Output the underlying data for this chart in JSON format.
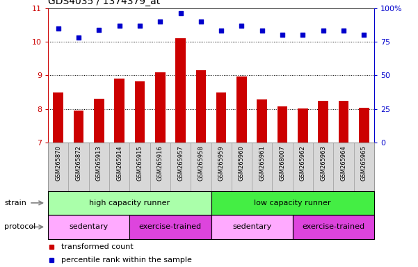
{
  "title": "GDS4035 / 1374379_at",
  "samples": [
    "GSM265870",
    "GSM265872",
    "GSM265913",
    "GSM265914",
    "GSM265915",
    "GSM265916",
    "GSM265957",
    "GSM265958",
    "GSM265959",
    "GSM265960",
    "GSM265961",
    "GSM268007",
    "GSM265962",
    "GSM265963",
    "GSM265964",
    "GSM265965"
  ],
  "bar_values": [
    8.5,
    7.95,
    8.3,
    8.9,
    8.82,
    9.1,
    10.1,
    9.15,
    8.5,
    8.97,
    8.28,
    8.08,
    8.02,
    8.25,
    8.25,
    8.05
  ],
  "dot_values_pct": [
    85,
    78,
    84,
    87,
    87,
    90,
    96,
    90,
    83,
    87,
    83,
    80,
    80,
    83,
    83,
    80
  ],
  "bar_color": "#cc0000",
  "dot_color": "#0000cc",
  "ylim_left": [
    7,
    11
  ],
  "ylim_right": [
    0,
    100
  ],
  "yticks_left": [
    7,
    8,
    9,
    10,
    11
  ],
  "yticks_right": [
    0,
    25,
    50,
    75,
    100
  ],
  "ytick_labels_right": [
    "0",
    "25",
    "50",
    "75",
    "100%"
  ],
  "grid_yticks": [
    8,
    9,
    10
  ],
  "strain_groups": [
    {
      "label": "high capacity runner",
      "start": 0,
      "end": 8,
      "color": "#aaffaa"
    },
    {
      "label": "low capacity runner",
      "start": 8,
      "end": 16,
      "color": "#44ee44"
    }
  ],
  "protocol_groups": [
    {
      "label": "sedentary",
      "start": 0,
      "end": 4,
      "color": "#ffaaff"
    },
    {
      "label": "exercise-trained",
      "start": 4,
      "end": 8,
      "color": "#dd44dd"
    },
    {
      "label": "sedentary",
      "start": 8,
      "end": 12,
      "color": "#ffaaff"
    },
    {
      "label": "exercise-trained",
      "start": 12,
      "end": 16,
      "color": "#dd44dd"
    }
  ],
  "legend_items": [
    {
      "label": "transformed count",
      "color": "#cc0000"
    },
    {
      "label": "percentile rank within the sample",
      "color": "#0000cc"
    }
  ],
  "tick_color_left": "#cc0000",
  "tick_color_right": "#0000cc",
  "label_box_color": "#d8d8d8",
  "label_box_edge": "#999999"
}
